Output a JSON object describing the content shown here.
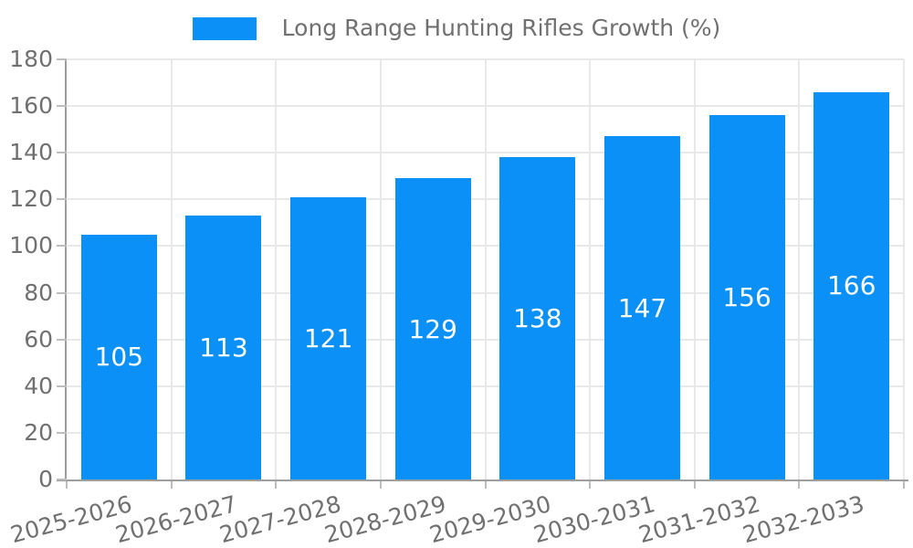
{
  "legend": {
    "label": "Long Range Hunting Rifles Growth (%)"
  },
  "colors": {
    "bar": "#0a90f7",
    "bar_label": "#ffffff",
    "axis_text": "#707070",
    "grid": "#e8e8e8",
    "axis_line": "#9e9e9e",
    "tick": "#bdbdbd",
    "background": "#ffffff"
  },
  "chart_data": {
    "type": "bar",
    "title": "Long Range Hunting Rifles Growth (%)",
    "categories": [
      "2025-2026",
      "2026-2027",
      "2027-2028",
      "2028-2029",
      "2029-2030",
      "2030-2031",
      "2031-2032",
      "2032-2033"
    ],
    "values": [
      105,
      113,
      121,
      129,
      138,
      147,
      156,
      166
    ],
    "xlabel": "",
    "ylabel": "",
    "ylim": [
      0,
      180
    ],
    "ytick_interval": 20,
    "ytick_labels": [
      "0",
      "20",
      "40",
      "60",
      "80",
      "100",
      "120",
      "140",
      "160",
      "180"
    ],
    "grid": true,
    "legend_position": "top-center",
    "value_labels": "inside-center",
    "xlabel_rotation_deg": -15
  }
}
